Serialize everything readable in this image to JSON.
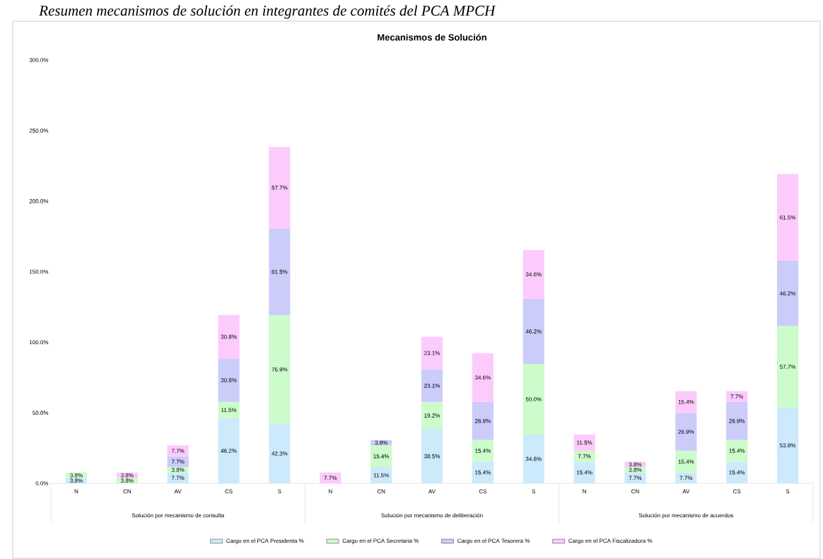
{
  "chart_data": {
    "type": "bar",
    "stacked": true,
    "title": "Mecanismos de Solución",
    "annotations": [
      "Resumen mecanismos de solución en integrantes de comités del PCA MPCH",
      "Solución por mecanismo de consulta",
      "Solución por mecanismo de deliberación",
      "Solución por mecanismo de acuerdos"
    ],
    "categories": [
      "N",
      "CN",
      "AV",
      "CS",
      "S",
      "N",
      "CN",
      "AV",
      "CS",
      "S",
      "N",
      "CN",
      "AV",
      "CS",
      "S"
    ],
    "series": [
      {
        "name": "Cargo en el PCA Presidenta %",
        "color": "#cceafb",
        "values": [
          3.8,
          null,
          7.7,
          46.2,
          42.3,
          null,
          11.5,
          38.5,
          15.4,
          34.6,
          15.4,
          7.7,
          7.7,
          15.4,
          53.8
        ],
        "value_labels": [
          "3.8%",
          null,
          "7.7%",
          "46.2%",
          "42.3%",
          null,
          "11.5%",
          "38.5%",
          "15.4%",
          "34.6%",
          "15.4%",
          "7.7%",
          "7.7%",
          "15.4%",
          "53.8%"
        ]
      },
      {
        "name": "Cargo en el PCA Secretaria %",
        "color": "#ccfccc",
        "values": [
          3.8,
          3.8,
          3.8,
          11.5,
          76.9,
          null,
          15.4,
          19.2,
          15.4,
          50.0,
          7.7,
          3.8,
          15.4,
          15.4,
          57.7
        ],
        "value_labels": [
          "3.8%",
          "3.8%",
          "3.8%",
          "11.5%",
          "76.9%",
          null,
          "15.4%",
          "19.2%",
          "15.4%",
          "50.0%",
          "7.7%",
          "3.8%",
          "15.4%",
          "15.4%",
          "57.7%"
        ]
      },
      {
        "name": "Cargo en el PCA Tesorera %",
        "color": "#ccccfb",
        "values": [
          null,
          null,
          7.7,
          30.8,
          61.5,
          null,
          3.8,
          23.1,
          26.9,
          46.2,
          null,
          null,
          26.9,
          26.9,
          46.2
        ],
        "value_labels": [
          null,
          null,
          "7.7%",
          "30.8%",
          "61.5%",
          null,
          "3.8%",
          "23.1%",
          "26.9%",
          "46.2%",
          null,
          null,
          "26.9%",
          "26.9%",
          "46.2%"
        ]
      },
      {
        "name": "Cargo en el PCA Fiscalizadora %",
        "color": "#fccbfc",
        "values": [
          null,
          3.8,
          7.7,
          30.8,
          57.7,
          7.7,
          null,
          23.1,
          34.6,
          34.6,
          11.5,
          3.8,
          15.4,
          7.7,
          61.5
        ],
        "value_labels": [
          null,
          "3.8%",
          "7.7%",
          "30.8%",
          "57.7%",
          "7.7%",
          null,
          "23.1%",
          "34.6%",
          "34.6%",
          "11.5%",
          "3.8%",
          "15.4%",
          "7.7%",
          "61.5%"
        ]
      }
    ],
    "ylim": [
      0,
      300
    ],
    "yticks": [
      {
        "value": 0,
        "label": "0.0%"
      },
      {
        "value": 50,
        "label": "50.0%"
      },
      {
        "value": 100,
        "label": "100.0%"
      },
      {
        "value": 150,
        "label": "150.0%"
      },
      {
        "value": 200,
        "label": "200.0%"
      },
      {
        "value": 250,
        "label": "250.0%"
      },
      {
        "value": 300,
        "label": "300.0%"
      }
    ],
    "grid": false,
    "legend": "bottom"
  }
}
